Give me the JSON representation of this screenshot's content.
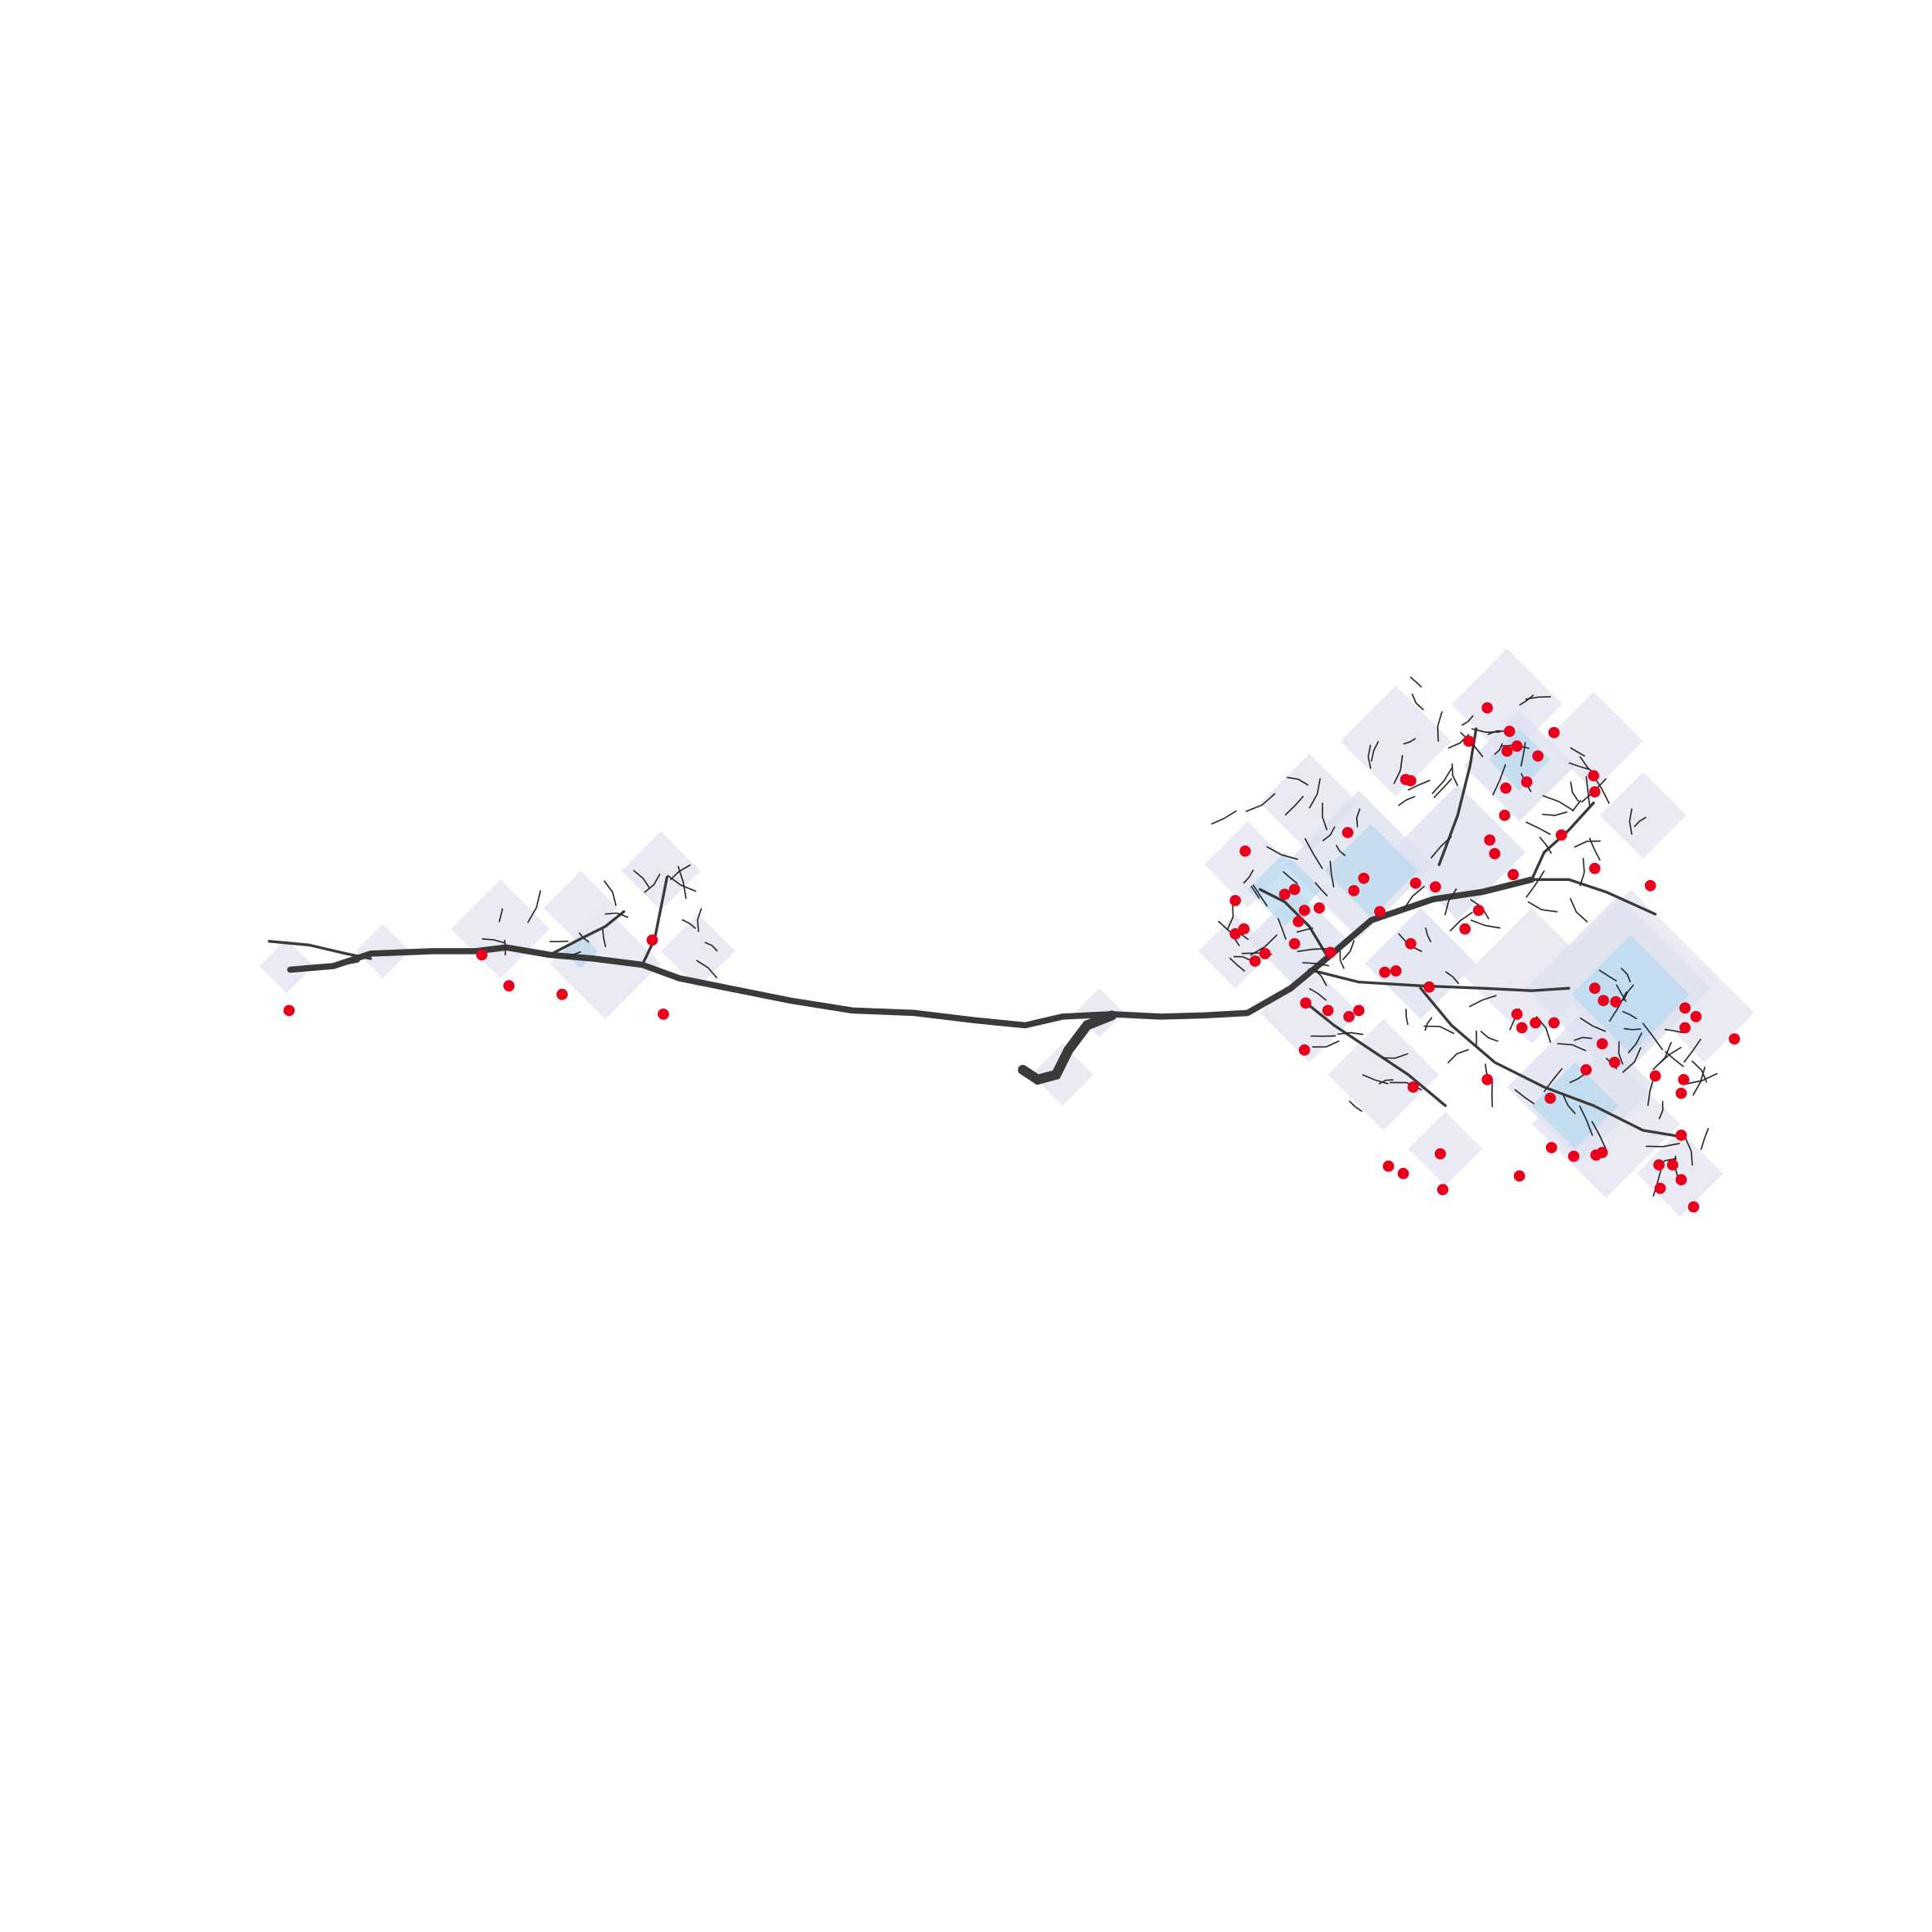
{
  "figure": {
    "background_color": "#ffffff",
    "colors": {
      "branch": "#3a3a3a",
      "twig": "#2b2b2b",
      "marker": "#e8001c",
      "density_light": "#e9e9f3",
      "density_mid": "#dfe1f0",
      "density_dense": "#b9daee"
    },
    "legend": null,
    "axes": "none"
  }
}
